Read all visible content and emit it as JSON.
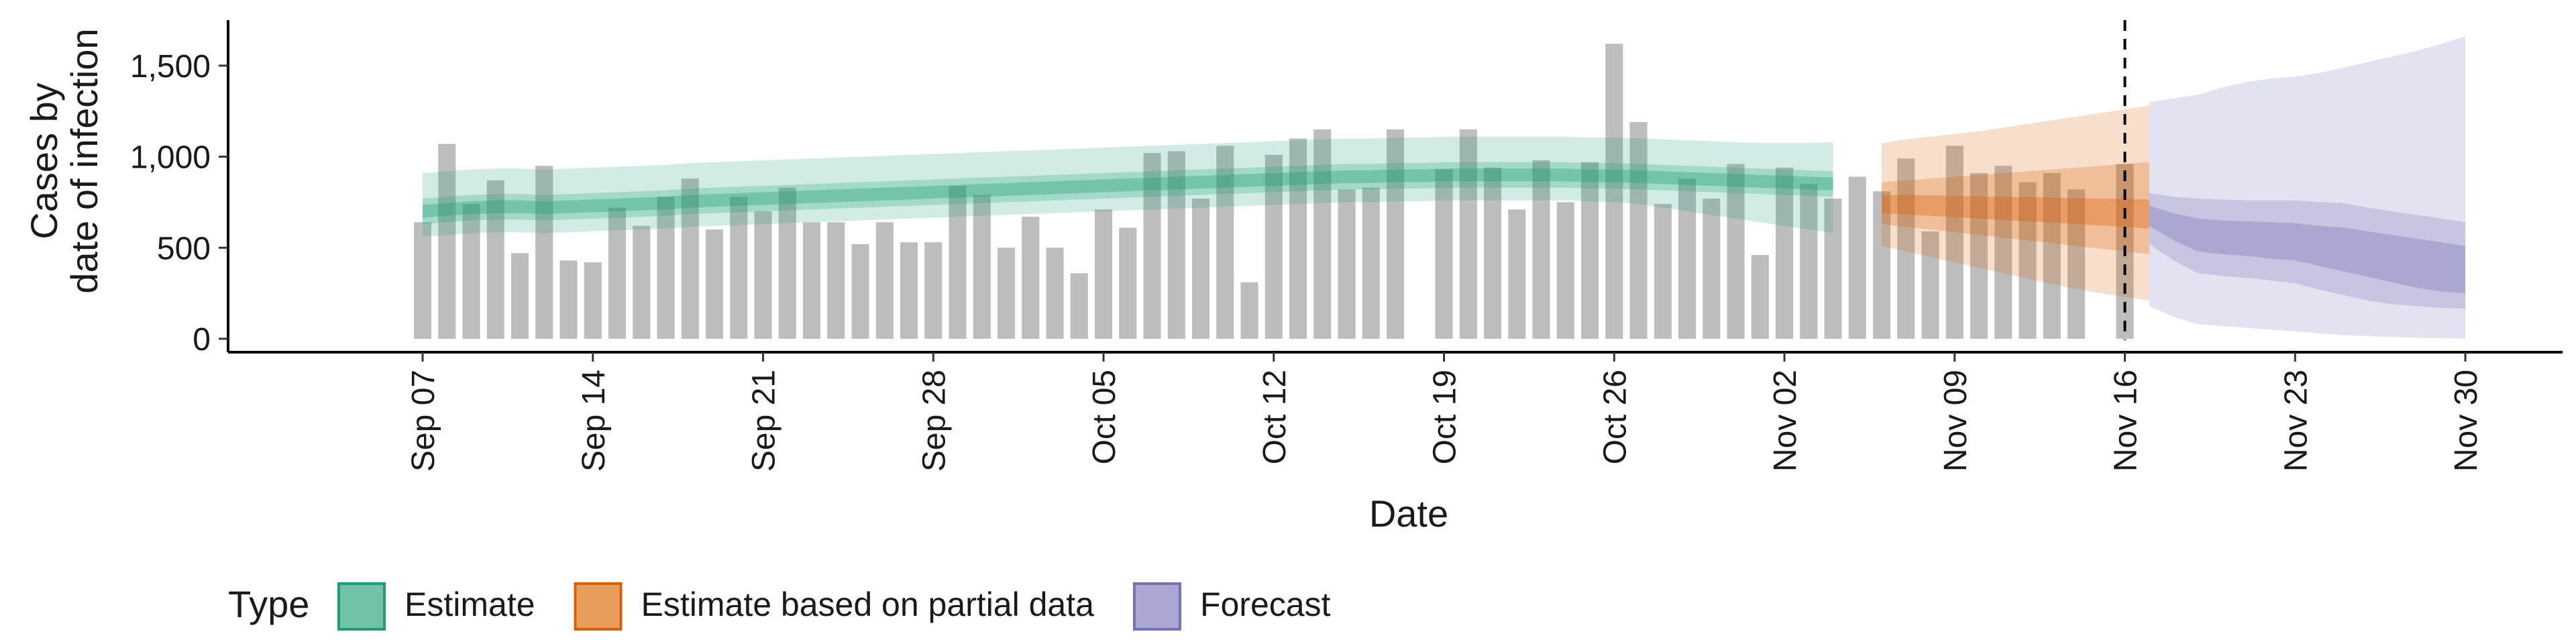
{
  "chart_data": {
    "type": "bar",
    "xlabel": "Date",
    "ylabel_lines": [
      "Cases by",
      "date of infection"
    ],
    "ylim": [
      0,
      1750
    ],
    "y_ticks": [
      {
        "value": 0,
        "label": "0"
      },
      {
        "value": 500,
        "label": "500"
      },
      {
        "value": 1000,
        "label": "1,000"
      },
      {
        "value": 1500,
        "label": "1,500"
      }
    ],
    "x_ticks": [
      {
        "date": "2020-09-07",
        "label": "Sep 07"
      },
      {
        "date": "2020-09-14",
        "label": "Sep 14"
      },
      {
        "date": "2020-09-21",
        "label": "Sep 21"
      },
      {
        "date": "2020-09-28",
        "label": "Sep 28"
      },
      {
        "date": "2020-10-05",
        "label": "Oct 05"
      },
      {
        "date": "2020-10-12",
        "label": "Oct 12"
      },
      {
        "date": "2020-10-19",
        "label": "Oct 19"
      },
      {
        "date": "2020-10-26",
        "label": "Oct 26"
      },
      {
        "date": "2020-11-02",
        "label": "Nov 02"
      },
      {
        "date": "2020-11-09",
        "label": "Nov 09"
      },
      {
        "date": "2020-11-16",
        "label": "Nov 16"
      },
      {
        "date": "2020-11-23",
        "label": "Nov 23"
      },
      {
        "date": "2020-11-30",
        "label": "Nov 30"
      }
    ],
    "x_range": [
      "2020-08-30",
      "2020-12-04"
    ],
    "bar_color": "#bdbdbd",
    "reference_line_date": "2020-11-16",
    "bars": {
      "start_date": "2020-09-07",
      "values": [
        640,
        1070,
        740,
        870,
        470,
        950,
        430,
        420,
        720,
        620,
        780,
        880,
        600,
        780,
        700,
        830,
        640,
        640,
        520,
        640,
        530,
        530,
        840,
        790,
        500,
        670,
        500,
        360,
        710,
        610,
        1020,
        1030,
        770,
        1060,
        310,
        1010,
        1100,
        1150,
        820,
        830,
        1150,
        null,
        930,
        1150,
        940,
        710,
        980,
        750,
        970,
        1620,
        1190,
        740,
        880,
        770,
        960,
        460,
        940,
        850,
        770,
        890,
        810,
        990,
        590,
        1060,
        910,
        950,
        860,
        910,
        820,
        null,
        960
      ]
    },
    "series": [
      {
        "name": "Estimate",
        "color": "#1b9e77",
        "start_date": "2020-09-07",
        "median": [
          700,
          710,
          720,
          725,
          725,
          720,
          725,
          730,
          735,
          740,
          745,
          755,
          760,
          765,
          770,
          775,
          780,
          785,
          790,
          795,
          800,
          805,
          810,
          815,
          820,
          825,
          830,
          835,
          840,
          845,
          850,
          855,
          860,
          865,
          870,
          875,
          880,
          885,
          890,
          890,
          895,
          895,
          900,
          900,
          900,
          900,
          900,
          900,
          895,
          895,
          890,
          885,
          880,
          875,
          870,
          865,
          860,
          855,
          850
        ],
        "inner_low": [
          665,
          675,
          685,
          690,
          690,
          685,
          690,
          695,
          700,
          705,
          710,
          720,
          725,
          730,
          735,
          740,
          745,
          750,
          755,
          760,
          765,
          770,
          775,
          780,
          785,
          790,
          795,
          800,
          805,
          810,
          815,
          820,
          825,
          830,
          835,
          840,
          845,
          850,
          855,
          855,
          860,
          860,
          865,
          865,
          865,
          865,
          865,
          865,
          860,
          860,
          855,
          850,
          845,
          840,
          835,
          830,
          825,
          820,
          815
        ],
        "inner_high": [
          735,
          745,
          755,
          760,
          760,
          755,
          760,
          765,
          770,
          775,
          780,
          790,
          795,
          800,
          805,
          810,
          815,
          820,
          825,
          830,
          835,
          840,
          845,
          850,
          855,
          860,
          865,
          870,
          875,
          880,
          885,
          890,
          895,
          900,
          905,
          910,
          915,
          920,
          925,
          925,
          930,
          930,
          935,
          935,
          935,
          935,
          935,
          935,
          930,
          930,
          925,
          920,
          915,
          910,
          905,
          900,
          895,
          890,
          885
        ],
        "mid_low": [
          630,
          640,
          650,
          655,
          655,
          650,
          655,
          660,
          665,
          670,
          675,
          685,
          690,
          695,
          700,
          705,
          710,
          715,
          720,
          725,
          730,
          735,
          740,
          745,
          750,
          755,
          760,
          765,
          770,
          775,
          780,
          785,
          790,
          795,
          800,
          805,
          810,
          815,
          820,
          820,
          825,
          825,
          830,
          830,
          830,
          830,
          830,
          830,
          825,
          825,
          820,
          815,
          810,
          805,
          800,
          795,
          790,
          785,
          780
        ],
        "mid_high": [
          770,
          780,
          790,
          795,
          795,
          790,
          795,
          800,
          805,
          810,
          815,
          825,
          830,
          835,
          840,
          845,
          850,
          855,
          860,
          865,
          870,
          875,
          880,
          885,
          890,
          895,
          900,
          905,
          910,
          915,
          920,
          925,
          930,
          935,
          940,
          945,
          950,
          955,
          960,
          960,
          965,
          965,
          970,
          970,
          970,
          970,
          970,
          970,
          965,
          965,
          960,
          955,
          950,
          945,
          940,
          935,
          930,
          925,
          920
        ],
        "outer_low": [
          560,
          570,
          580,
          585,
          585,
          580,
          585,
          590,
          595,
          600,
          605,
          615,
          620,
          625,
          630,
          635,
          640,
          645,
          650,
          655,
          660,
          665,
          670,
          675,
          680,
          685,
          690,
          695,
          700,
          705,
          710,
          715,
          720,
          725,
          730,
          735,
          740,
          745,
          750,
          750,
          755,
          755,
          760,
          760,
          760,
          760,
          760,
          760,
          755,
          750,
          740,
          720,
          700,
          680,
          660,
          640,
          620,
          600,
          580
        ],
        "outer_high": [
          910,
          920,
          930,
          935,
          935,
          930,
          935,
          940,
          945,
          950,
          955,
          965,
          970,
          975,
          980,
          985,
          990,
          995,
          1000,
          1005,
          1010,
          1015,
          1020,
          1025,
          1030,
          1035,
          1040,
          1045,
          1050,
          1055,
          1060,
          1065,
          1070,
          1075,
          1080,
          1085,
          1090,
          1095,
          1100,
          1100,
          1105,
          1105,
          1110,
          1110,
          1110,
          1110,
          1110,
          1110,
          1105,
          1105,
          1100,
          1095,
          1090,
          1085,
          1080,
          1075,
          1075,
          1075,
          1080
        ]
      },
      {
        "name": "Estimate based on partial data",
        "color": "#d95f02",
        "start_date": "2020-11-06",
        "median": [
          740,
          735,
          730,
          725,
          720,
          715,
          710,
          705,
          700,
          695,
          690,
          685
        ],
        "inner_low": [
          690,
          682,
          675,
          668,
          660,
          652,
          645,
          638,
          630,
          622,
          615,
          605
        ],
        "inner_high": [
          790,
          790,
          788,
          785,
          782,
          780,
          778,
          775,
          772,
          770,
          768,
          765
        ],
        "mid_low": [
          630,
          615,
          600,
          585,
          570,
          555,
          540,
          525,
          510,
          495,
          480,
          465
        ],
        "mid_high": [
          860,
          870,
          880,
          890,
          900,
          910,
          920,
          930,
          940,
          950,
          960,
          970
        ],
        "outer_low": [
          510,
          480,
          450,
          420,
          390,
          360,
          330,
          300,
          275,
          250,
          230,
          210
        ],
        "outer_high": [
          1075,
          1095,
          1110,
          1125,
          1140,
          1160,
          1180,
          1200,
          1220,
          1240,
          1260,
          1280
        ]
      },
      {
        "name": "Forecast",
        "color": "#7570b3",
        "start_date": "2020-11-17",
        "median": [
          680,
          610,
          570,
          560,
          550,
          540,
          530,
          510,
          490,
          470,
          450,
          430,
          410,
          400
        ],
        "inner_low": [
          620,
          540,
          480,
          465,
          455,
          440,
          430,
          400,
          370,
          340,
          310,
          280,
          260,
          250
        ],
        "inner_high": [
          730,
          690,
          660,
          650,
          645,
          640,
          635,
          620,
          610,
          590,
          570,
          550,
          530,
          510
        ],
        "mid_low": [
          520,
          430,
          360,
          345,
          335,
          320,
          305,
          270,
          240,
          210,
          190,
          180,
          170,
          165
        ],
        "mid_high": [
          800,
          780,
          770,
          765,
          760,
          760,
          760,
          750,
          745,
          720,
          700,
          680,
          660,
          640
        ],
        "outer_low": [
          180,
          120,
          80,
          70,
          60,
          50,
          40,
          30,
          20,
          15,
          10,
          5,
          3,
          0
        ],
        "outer_high": [
          1300,
          1320,
          1340,
          1380,
          1410,
          1430,
          1440,
          1460,
          1490,
          1520,
          1550,
          1580,
          1620,
          1660
        ]
      }
    ],
    "legend": {
      "title": "Type",
      "placement": "bottom",
      "items": [
        {
          "label": "Estimate",
          "fill": "#71c2a7",
          "stroke": "#1b9e77"
        },
        {
          "label": "Estimate based on partial data",
          "fill": "#e99d5d",
          "stroke": "#d95f02"
        },
        {
          "label": "Forecast",
          "fill": "#aaa7d3",
          "stroke": "#7570b3"
        }
      ]
    }
  }
}
